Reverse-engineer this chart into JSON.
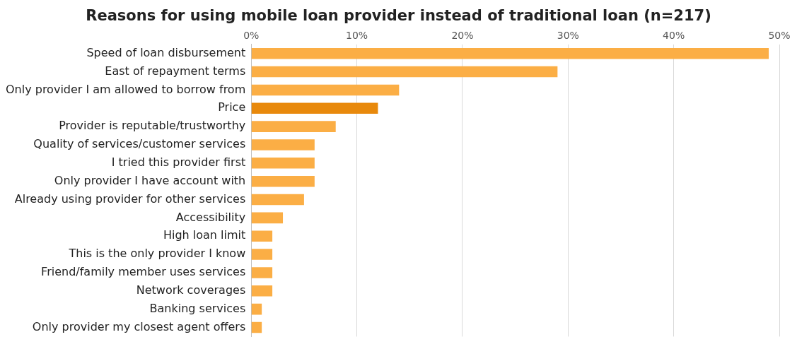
{
  "chart_data": {
    "type": "bar",
    "orientation": "horizontal",
    "title": "Reasons for using mobile loan provider instead of traditional loan (n=217)",
    "categories": [
      "Speed of loan disbursement",
      "East of repayment terms",
      "Only provider I am allowed to borrow from",
      "Price",
      "Provider is reputable/trustworthy",
      "Quality of services/customer services",
      "I tried this provider first",
      "Only provider I have account with",
      "Already using provider for other services",
      "Accessibility",
      "High loan limit",
      "This is the only provider I know",
      "Friend/family member uses services",
      "Network coverages",
      "Banking services",
      "Only provider my closest agent offers"
    ],
    "values": [
      49,
      29,
      14,
      12,
      8,
      6,
      6,
      6,
      5,
      3,
      2,
      2,
      2,
      2,
      1,
      1
    ],
    "colors": [
      "#fbae45",
      "#fbae45",
      "#fbae45",
      "#e8890c",
      "#fbae45",
      "#fbae45",
      "#fbae45",
      "#fbae45",
      "#fbae45",
      "#fbae45",
      "#fbae45",
      "#fbae45",
      "#fbae45",
      "#fbae45",
      "#fbae45",
      "#fbae45"
    ],
    "xlim": [
      0,
      50
    ],
    "xticks": [
      {
        "value": 0,
        "label": "0%"
      },
      {
        "value": 10,
        "label": "10%"
      },
      {
        "value": 20,
        "label": "20%"
      },
      {
        "value": 30,
        "label": "30%"
      },
      {
        "value": 40,
        "label": "40%"
      },
      {
        "value": 50,
        "label": "50%"
      }
    ],
    "grid": "x",
    "legend": false
  }
}
